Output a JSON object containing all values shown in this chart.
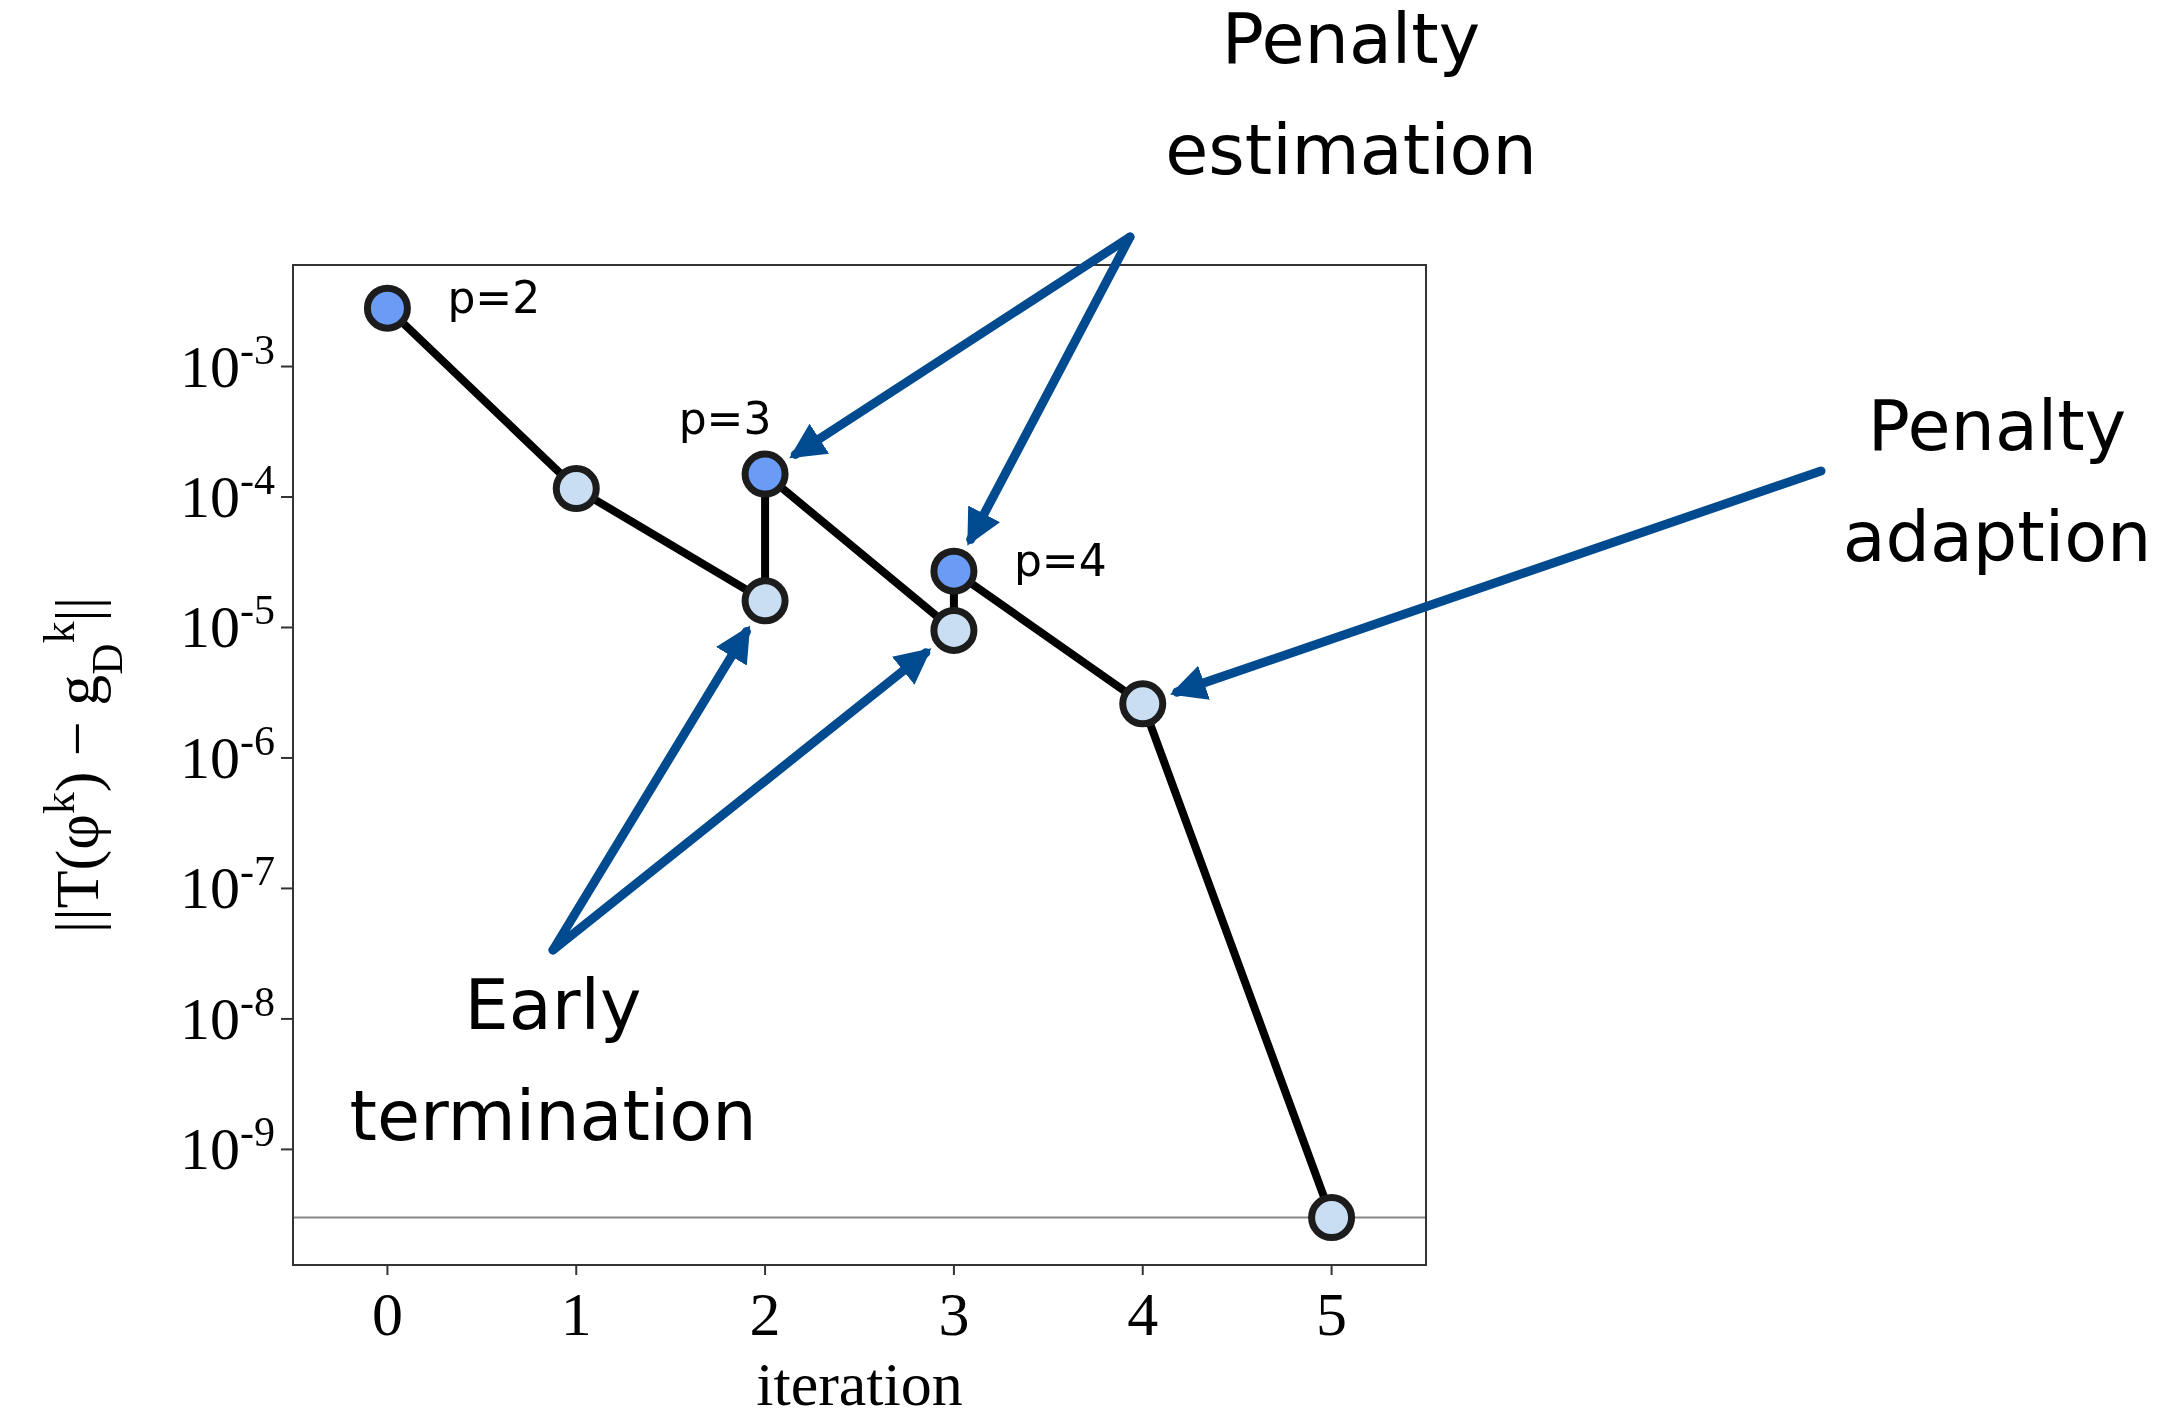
{
  "chart_data": {
    "type": "line",
    "xlabel": "iteration",
    "ylabel": "||T(φ$^{k}$) − g$_{D}$$^{k}$||",
    "x": [
      0,
      1,
      2,
      2,
      3,
      3,
      4,
      5
    ],
    "series": [
      {
        "color": "#000000",
        "values": [
          0.0028,
          0.000116,
          1.6e-05,
          0.00015,
          9.5e-06,
          2.7e-05,
          2.6e-06,
          3e-10
        ],
        "colors": [
          "#6a9bf5",
          "#c9def2",
          "#c9def2",
          "#6a9bf5",
          "#c9def2",
          "#6a9bf5",
          "#c9def2",
          "#c9def2"
        ]
      }
    ],
    "marker": "circle",
    "line_style": "solid",
    "log": true,
    "grid": false,
    "xlim": [
      -0.5,
      5.5
    ],
    "xticks": [
      0,
      1,
      2,
      3,
      4,
      5
    ],
    "ylim": [
      1.3e-10,
      0.006
    ],
    "yticks": [
      {
        "value": 1e-09,
        "label": "10$^{-9}$"
      },
      {
        "value": 1e-08,
        "label": "10$^{-8}$"
      },
      {
        "value": 1e-07,
        "label": "10$^{-7}$"
      },
      {
        "value": 1e-06,
        "label": "10$^{-6}$"
      },
      {
        "value": 1e-05,
        "label": "10$^{-5}$"
      },
      {
        "value": 0.0001,
        "label": "10$^{-4}$"
      },
      {
        "value": 0.001,
        "label": "10$^{-3}$"
      }
    ],
    "ref_lines": [
      {
        "axis": "y",
        "value": 3e-10,
        "color": "#888888"
      }
    ],
    "annotations": [
      {
        "text": "p=2",
        "x": 0,
        "y": 0.0028
      },
      {
        "text": "p=3",
        "x": 2,
        "y": 0.00015
      },
      {
        "text": "p=4",
        "x": 3,
        "y": 2.7e-05
      },
      "Penalty estimation",
      "Penalty adaption",
      "Early termination"
    ]
  }
}
